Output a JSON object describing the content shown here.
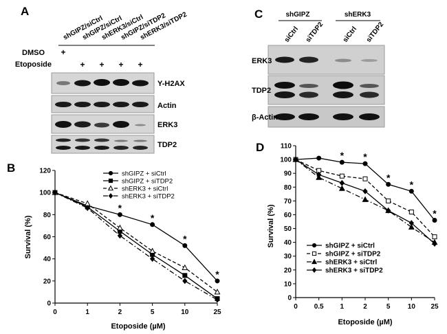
{
  "panels": {
    "A": {
      "letter": "A",
      "lanes": [
        "shGIPZ/siCtrl",
        "shGIPZ/siCtrl",
        "shERK3/siCtrl",
        "shGIPZ/siTDP2",
        "shERK3/siTDP2"
      ],
      "treatments": [
        {
          "label": "DMSO",
          "marks": [
            "+",
            "",
            "",
            "",
            ""
          ]
        },
        {
          "label": "Etoposide",
          "marks": [
            "",
            "+",
            "+",
            "+",
            "+"
          ]
        }
      ],
      "blots": [
        "Y-H2AX",
        "Actin",
        "ERK3",
        "TDP2"
      ]
    },
    "C": {
      "letter": "C",
      "groups": [
        "shGIPZ",
        "shERK3"
      ],
      "lanes": [
        "siCtrl",
        "siTDP2",
        "siCtrl",
        "siTDP2"
      ],
      "blots": [
        "ERK3",
        "TDP2",
        "β-Actin"
      ]
    }
  },
  "chart_data": [
    {
      "panel": "B",
      "letter": "B",
      "type": "line",
      "xlabel": "Etoposide (µM)",
      "ylabel": "Survival (%)",
      "categories": [
        "0",
        "1",
        "2",
        "5",
        "10",
        "25"
      ],
      "ylim": [
        0,
        120
      ],
      "yticks": [
        "0",
        "20",
        "40",
        "60",
        "80",
        "100",
        "120"
      ],
      "legend_position": "top-right",
      "series": [
        {
          "name": "shGIPZ + siCtrl",
          "values": [
            100,
            88,
            80,
            71,
            52,
            20
          ],
          "marker": "circle",
          "dash": "solid"
        },
        {
          "name": "shGIPZ + siTDP2",
          "values": [
            100,
            87,
            65,
            44,
            25,
            4
          ],
          "marker": "square",
          "dash": "solid"
        },
        {
          "name": "shERK3 + siCtrl",
          "values": [
            100,
            90,
            68,
            47,
            32,
            10
          ],
          "marker": "triangle-open",
          "dash": "dashed"
        },
        {
          "name": "shERK3 + siTDP2",
          "values": [
            100,
            86,
            61,
            40,
            20,
            3
          ],
          "marker": "diamond",
          "dash": "dashdot"
        }
      ],
      "annotations": [
        {
          "category": "2",
          "text": "*"
        },
        {
          "category": "5",
          "text": "*"
        },
        {
          "category": "10",
          "text": "*"
        },
        {
          "category": "25",
          "text": "*"
        }
      ]
    },
    {
      "panel": "D",
      "letter": "D",
      "type": "line",
      "xlabel": "Etoposide (µM)",
      "ylabel": "Survival (%)",
      "categories": [
        "0",
        "0.5",
        "1",
        "2",
        "5",
        "10",
        "25"
      ],
      "ylim": [
        0,
        110
      ],
      "yticks": [
        "0",
        "10",
        "20",
        "30",
        "40",
        "50",
        "60",
        "70",
        "80",
        "90",
        "100",
        "110"
      ],
      "legend_position": "bottom-left",
      "series": [
        {
          "name": "shGIPZ + siCtrl",
          "values": [
            100,
            101,
            98,
            97,
            82,
            77,
            56
          ],
          "marker": "circle",
          "dash": "solid"
        },
        {
          "name": "shGIPZ + siTDP2",
          "values": [
            100,
            92,
            88,
            86,
            70,
            62,
            44
          ],
          "marker": "square-open",
          "dash": "dashed"
        },
        {
          "name": "shERK3 + siCtrl",
          "values": [
            100,
            87,
            79,
            71,
            63,
            51,
            40
          ],
          "marker": "triangle",
          "dash": "dashdot"
        },
        {
          "name": "shERK3 + siTDP2",
          "values": [
            100,
            89,
            83,
            77,
            63,
            54,
            39
          ],
          "marker": "diamond",
          "dash": "solid"
        }
      ],
      "annotations": [
        {
          "category": "1",
          "text": "*"
        },
        {
          "category": "2",
          "text": "*"
        },
        {
          "category": "5",
          "text": "*"
        },
        {
          "category": "10",
          "text": "*"
        },
        {
          "category": "25",
          "text": "*"
        }
      ]
    }
  ]
}
